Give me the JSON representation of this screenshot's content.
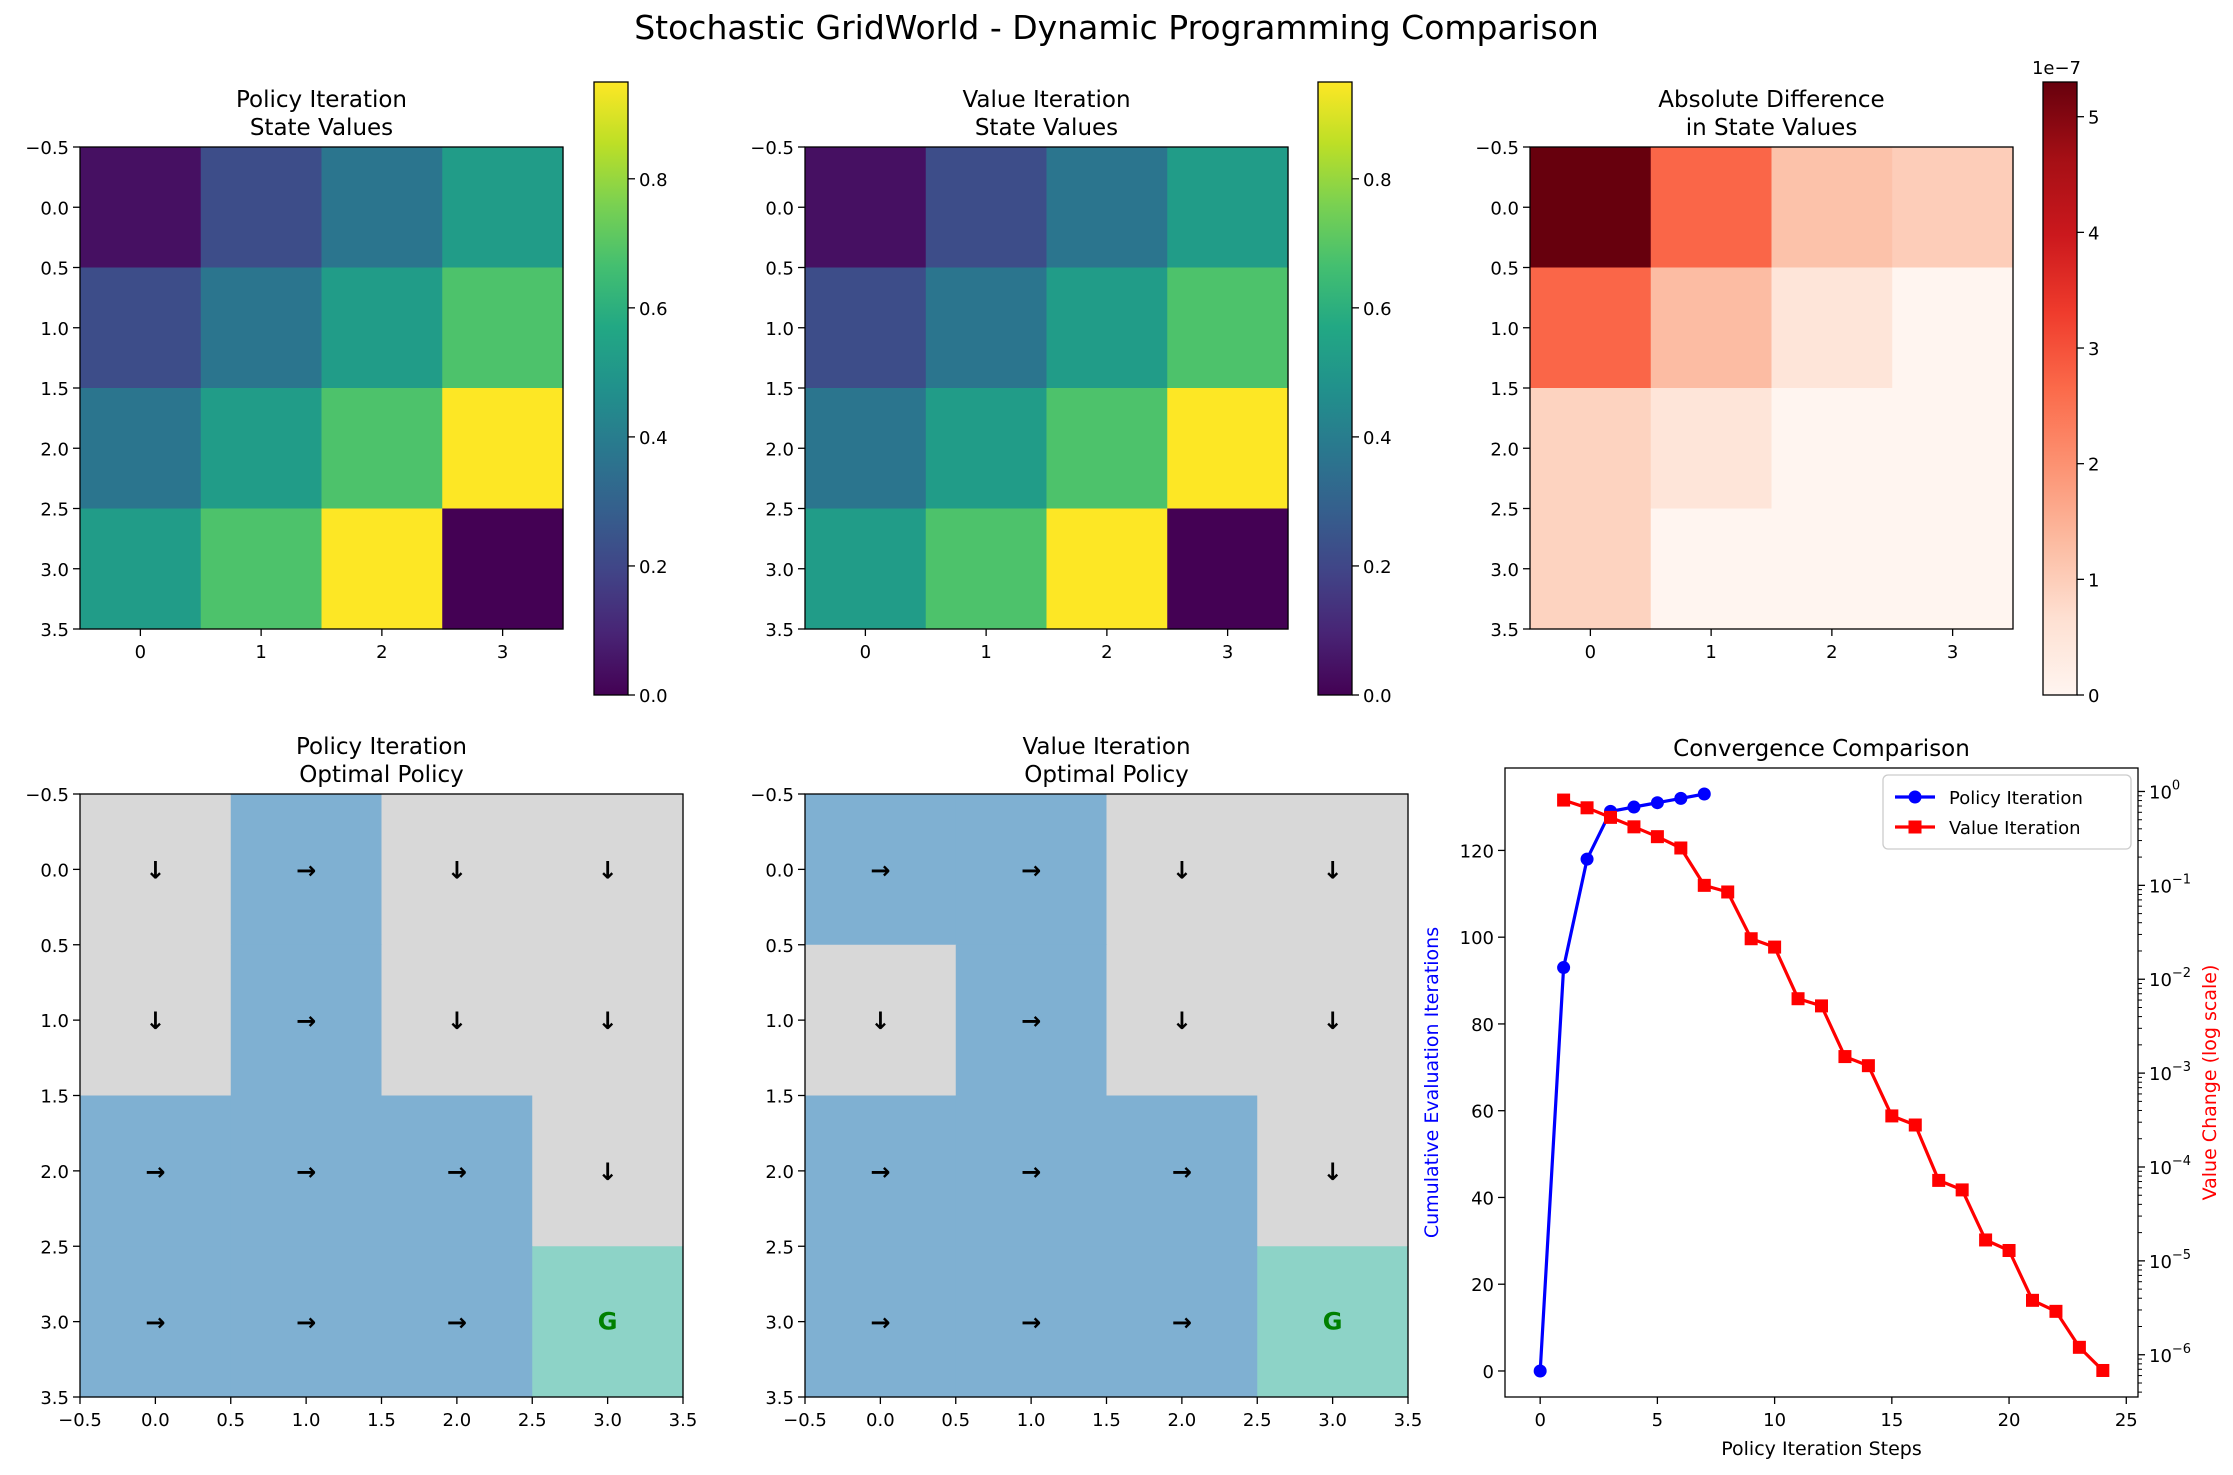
{
  "title": "Stochastic GridWorld - Dynamic Programming Comparison",
  "colors": {
    "policy_series": "#0000ff",
    "value_series": "#ff0000",
    "right_action_cell": "#7fb0d2",
    "down_action_cell": "#d8d8d8",
    "goal_cell": "#8dd3c7",
    "goal_text": "#008000"
  },
  "chart_data": [
    {
      "type": "heatmap",
      "id": "pi-values",
      "title": "Policy Iteration\nState Values",
      "colormap": "viridis",
      "values": [
        [
          0.04,
          0.22,
          0.37,
          0.52
        ],
        [
          0.22,
          0.37,
          0.52,
          0.68
        ],
        [
          0.37,
          0.52,
          0.68,
          0.95
        ],
        [
          0.52,
          0.68,
          0.95,
          0.0
        ]
      ],
      "x_ticks": [
        "0",
        "1",
        "2",
        "3"
      ],
      "y_ticks": [
        "−0.5",
        "0.0",
        "0.5",
        "1.0",
        "1.5",
        "2.0",
        "2.5",
        "3.0",
        "3.5"
      ],
      "colorbar": {
        "range": [
          0,
          0.95
        ],
        "ticks": [
          "0.0",
          "0.2",
          "0.4",
          "0.6",
          "0.8"
        ]
      }
    },
    {
      "type": "heatmap",
      "id": "vi-values",
      "title": "Value Iteration\nState Values",
      "colormap": "viridis",
      "values": [
        [
          0.04,
          0.22,
          0.37,
          0.52
        ],
        [
          0.22,
          0.37,
          0.52,
          0.68
        ],
        [
          0.37,
          0.52,
          0.68,
          0.95
        ],
        [
          0.52,
          0.68,
          0.95,
          0.0
        ]
      ],
      "x_ticks": [
        "0",
        "1",
        "2",
        "3"
      ],
      "y_ticks": [
        "−0.5",
        "0.0",
        "0.5",
        "1.0",
        "1.5",
        "2.0",
        "2.5",
        "3.0",
        "3.5"
      ],
      "colorbar": {
        "range": [
          0,
          0.95
        ],
        "ticks": [
          "0.0",
          "0.2",
          "0.4",
          "0.6",
          "0.8"
        ]
      }
    },
    {
      "type": "heatmap",
      "id": "abs-diff",
      "title": "Absolute Difference\nin State Values",
      "colormap": "reds",
      "values": [
        [
          5.3e-07,
          2.7e-07,
          1.2e-07,
          1e-07
        ],
        [
          2.7e-07,
          1.3e-07,
          5e-08,
          0.0
        ],
        [
          9e-08,
          5e-08,
          0.0,
          0.0
        ],
        [
          9e-08,
          0.0,
          0.0,
          0.0
        ]
      ],
      "x_ticks": [
        "0",
        "1",
        "2",
        "3"
      ],
      "y_ticks": [
        "−0.5",
        "0.0",
        "0.5",
        "1.0",
        "1.5",
        "2.0",
        "2.5",
        "3.0",
        "3.5"
      ],
      "colorbar": {
        "range": [
          0,
          5.3e-07
        ],
        "ticks": [
          "0",
          "1",
          "2",
          "3",
          "4",
          "5"
        ],
        "offset_label": "1e−7"
      }
    },
    {
      "type": "heatmap",
      "id": "pi-policy",
      "title": "Policy Iteration\nOptimal Policy",
      "arrows": [
        [
          "↓",
          "→",
          "↓",
          "↓"
        ],
        [
          "↓",
          "→",
          "↓",
          "↓"
        ],
        [
          "→",
          "→",
          "→",
          "↓"
        ],
        [
          "→",
          "→",
          "→",
          "G"
        ]
      ],
      "x_ticks": [
        "−0.5",
        "0.0",
        "0.5",
        "1.0",
        "1.5",
        "2.0",
        "2.5",
        "3.0",
        "3.5"
      ],
      "y_ticks": [
        "−0.5",
        "0.0",
        "0.5",
        "1.0",
        "1.5",
        "2.0",
        "2.5",
        "3.0",
        "3.5"
      ]
    },
    {
      "type": "heatmap",
      "id": "vi-policy",
      "title": "Value Iteration\nOptimal Policy",
      "arrows": [
        [
          "→",
          "→",
          "↓",
          "↓"
        ],
        [
          "↓",
          "→",
          "↓",
          "↓"
        ],
        [
          "→",
          "→",
          "→",
          "↓"
        ],
        [
          "→",
          "→",
          "→",
          "G"
        ]
      ],
      "x_ticks": [
        "−0.5",
        "0.0",
        "0.5",
        "1.0",
        "1.5",
        "2.0",
        "2.5",
        "3.0",
        "3.5"
      ],
      "y_ticks": [
        "−0.5",
        "0.0",
        "0.5",
        "1.0",
        "1.5",
        "2.0",
        "2.5",
        "3.0",
        "3.5"
      ]
    },
    {
      "type": "line",
      "id": "convergence",
      "title": "Convergence Comparison",
      "xlabel": "Policy Iteration Steps",
      "ylabel": "Cumulative Evaluation Iterations",
      "y2label": "Value Change (log scale)",
      "xlim": [
        -1.5,
        25.5
      ],
      "ylim": [
        -6,
        139
      ],
      "y2lim_log10": [
        -6.45,
        0.25
      ],
      "x_ticks": [
        0,
        5,
        10,
        15,
        20,
        25
      ],
      "y_ticks": [
        0,
        20,
        40,
        60,
        80,
        100,
        120
      ],
      "y2_tick_exponents": [
        -6,
        -5,
        -4,
        -3,
        -2,
        -1,
        0
      ],
      "legend": "upper right",
      "series": [
        {
          "name": "Policy Iteration",
          "axis": "left",
          "marker": "circle",
          "x": [
            0,
            1,
            2,
            3,
            4,
            5,
            6,
            7
          ],
          "y": [
            0,
            93,
            118,
            129,
            130,
            131,
            132,
            133
          ]
        },
        {
          "name": "Value Iteration",
          "axis": "right",
          "marker": "square",
          "x": [
            1,
            2,
            3,
            4,
            5,
            6,
            7,
            8,
            9,
            10,
            11,
            12,
            13,
            14,
            15,
            16,
            17,
            18,
            19,
            20,
            21,
            22,
            23,
            24
          ],
          "y": [
            0.81,
            0.67,
            0.53,
            0.42,
            0.33,
            0.25,
            0.1,
            0.085,
            0.027,
            0.022,
            0.0062,
            0.0052,
            0.0015,
            0.0012,
            0.00035,
            0.00028,
            7.2e-05,
            5.7e-05,
            1.67e-05,
            1.29e-05,
            3.8e-06,
            2.9e-06,
            1.2e-06,
            6.8e-07
          ]
        }
      ]
    }
  ]
}
